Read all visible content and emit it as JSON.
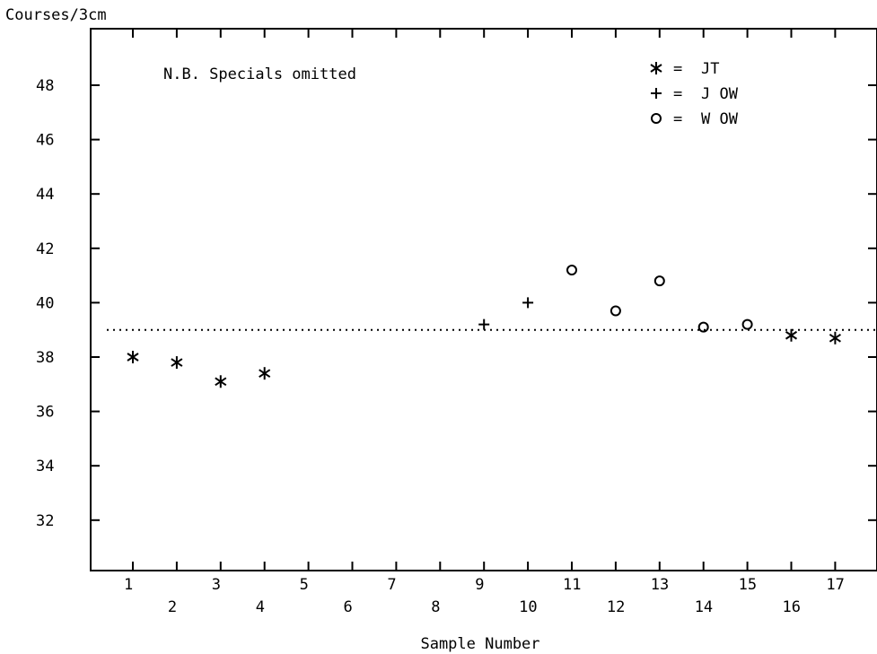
{
  "chart_data": {
    "type": "scatter",
    "title": "",
    "annotation": "N.B. Specials omitted",
    "xlabel": "Sample Number",
    "ylabel": "Courses/3cm",
    "xticks": [
      "1",
      "2",
      "3",
      "4",
      "5",
      "6",
      "7",
      "8",
      "9",
      "10",
      "11",
      "12",
      "13",
      "14",
      "15",
      "16",
      "17"
    ],
    "yticks": [
      "32",
      "34",
      "36",
      "38",
      "40",
      "42",
      "44",
      "46",
      "48"
    ],
    "xlim": [
      0,
      18
    ],
    "ylim": [
      30.2,
      50
    ],
    "reference_line": {
      "y": 39,
      "style": "dotted"
    },
    "grid": false,
    "legend_position": "top-right",
    "series": [
      {
        "name": "JT",
        "symbol": "*",
        "points": [
          {
            "x": 1,
            "y": 38.0
          },
          {
            "x": 2,
            "y": 37.8
          },
          {
            "x": 3,
            "y": 37.1
          },
          {
            "x": 4,
            "y": 37.4
          },
          {
            "x": 16,
            "y": 38.8
          },
          {
            "x": 17,
            "y": 38.7
          }
        ]
      },
      {
        "name": "J OW",
        "symbol": "+",
        "points": [
          {
            "x": 9,
            "y": 39.2
          },
          {
            "x": 10,
            "y": 40.0
          }
        ]
      },
      {
        "name": "W OW",
        "symbol": "o",
        "points": [
          {
            "x": 11,
            "y": 41.2
          },
          {
            "x": 12,
            "y": 39.7
          },
          {
            "x": 13,
            "y": 40.8
          },
          {
            "x": 14,
            "y": 39.1
          },
          {
            "x": 15,
            "y": 39.2
          }
        ]
      }
    ],
    "legend": [
      {
        "symbol": "*",
        "eq": "=",
        "label": "JT"
      },
      {
        "symbol": "+",
        "eq": "=",
        "label": "J OW"
      },
      {
        "symbol": "o",
        "eq": "=",
        "label": "W OW"
      }
    ]
  }
}
